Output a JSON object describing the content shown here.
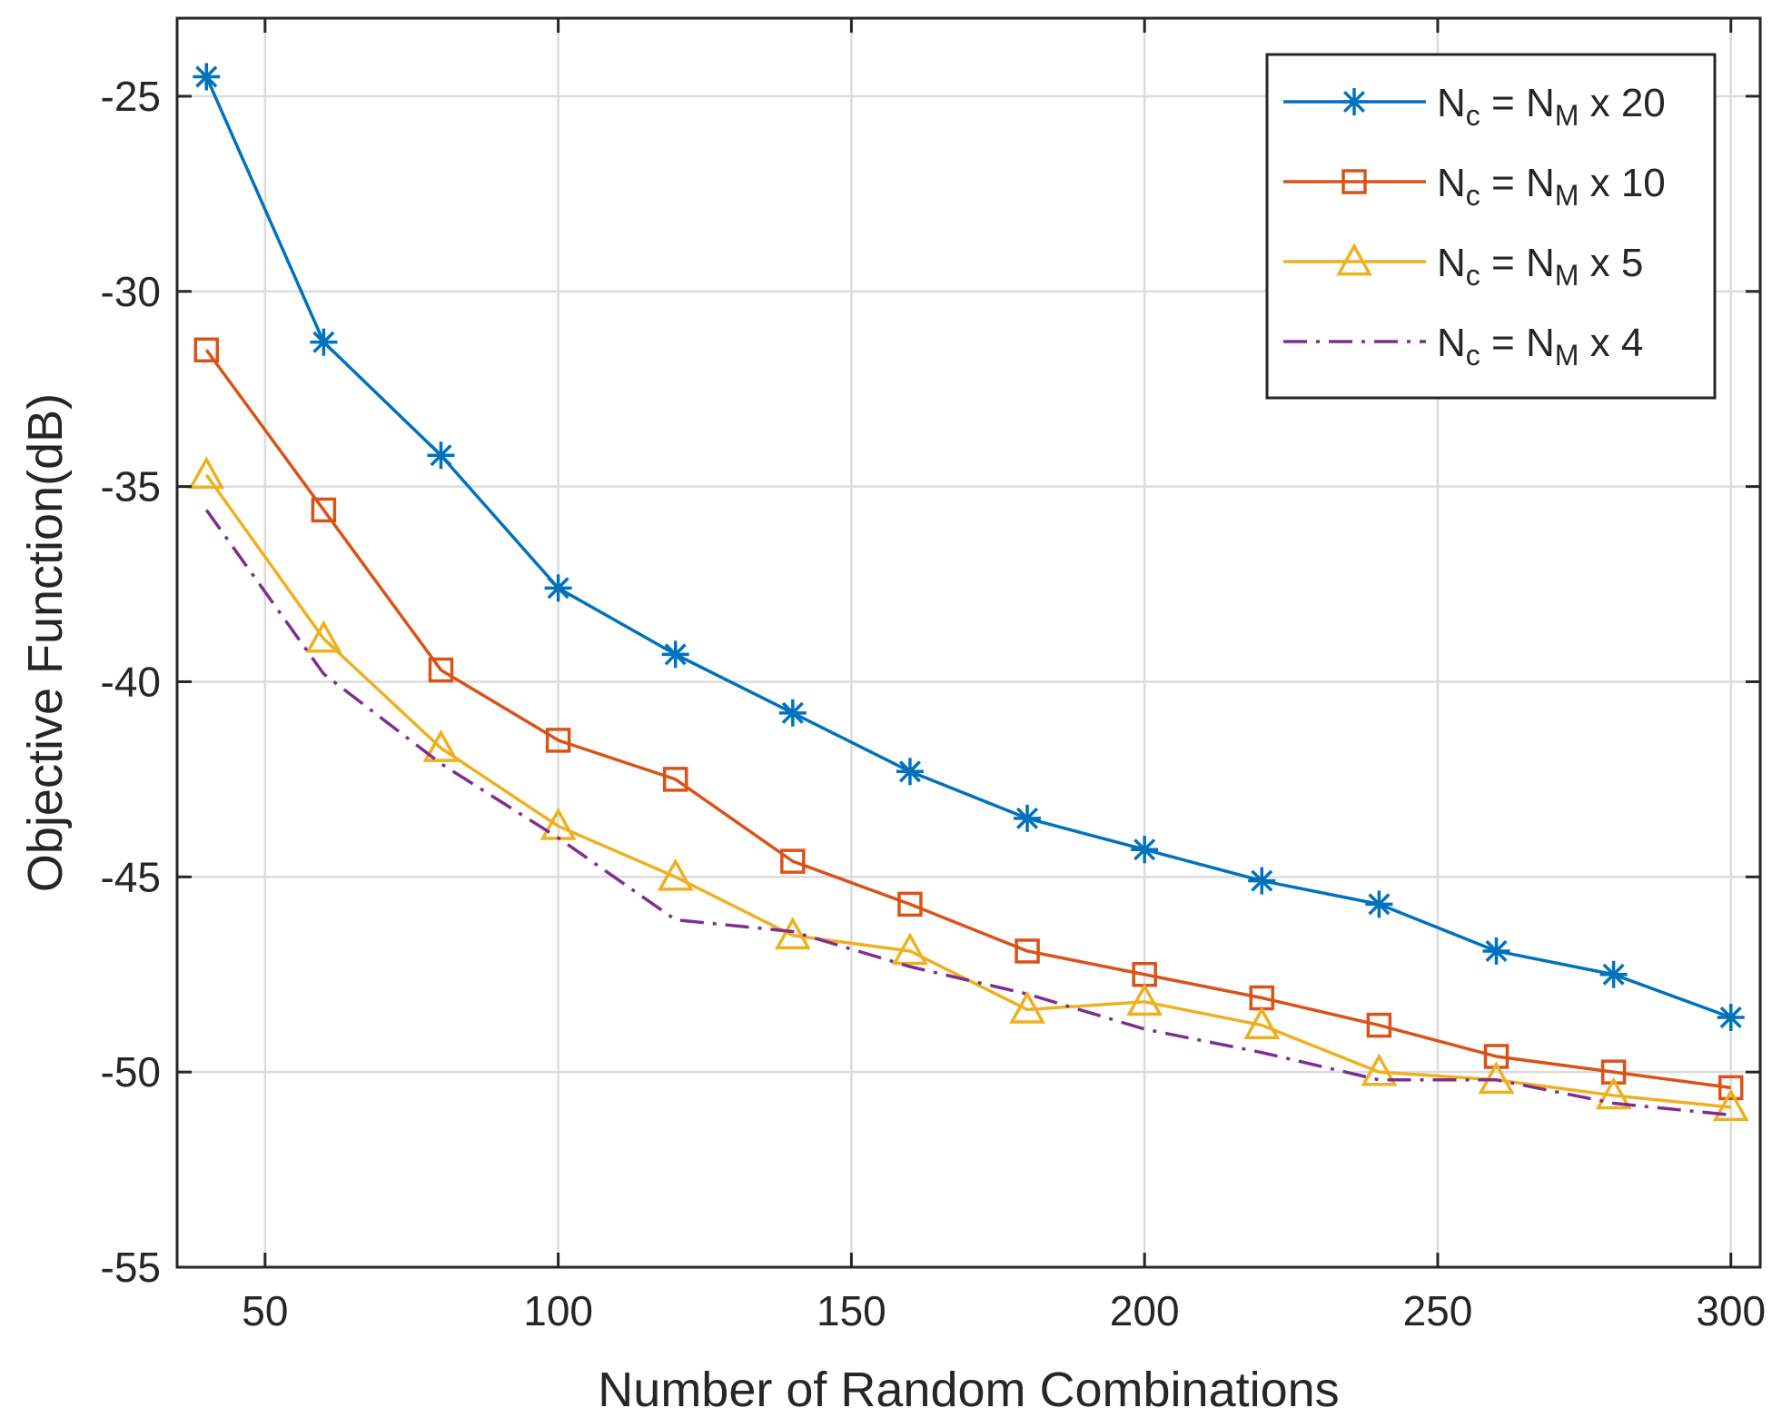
{
  "chart_data": {
    "type": "line",
    "title": "",
    "xlabel": "Number of Random Combinations",
    "ylabel": "Objective Function(dB)",
    "xlim": [
      35,
      305
    ],
    "ylim": [
      -55,
      -23
    ],
    "xticks": [
      50,
      100,
      150,
      200,
      250,
      300
    ],
    "yticks": [
      -25,
      -30,
      -35,
      -40,
      -45,
      -50,
      -55
    ],
    "xtick_labels": [
      "50",
      "100",
      "150",
      "200",
      "250",
      "300"
    ],
    "ytick_labels": [
      "-25",
      "-30",
      "-35",
      "-40",
      "-45",
      "-50",
      "-55"
    ],
    "grid": true,
    "legend_position": "top-right",
    "x": [
      40,
      60,
      80,
      100,
      120,
      140,
      160,
      180,
      200,
      220,
      240,
      260,
      280,
      300
    ],
    "series": [
      {
        "name": "N_c = N_M x 20",
        "legend": {
          "n1": "N",
          "sub1": "c",
          "eq": " = ",
          "n2": "N",
          "sub2": "M",
          "rest": " x 20"
        },
        "color": "#0072BD",
        "marker": "asterisk",
        "dash": "solid",
        "values": [
          -24.5,
          -31.3,
          -34.2,
          -37.6,
          -39.3,
          -40.8,
          -42.3,
          -43.5,
          -44.3,
          -45.1,
          -45.7,
          -46.9,
          -47.5,
          -48.6
        ]
      },
      {
        "name": "N_c = N_M x 10",
        "legend": {
          "n1": "N",
          "sub1": "c",
          "eq": " = ",
          "n2": "N",
          "sub2": "M",
          "rest": " x 10"
        },
        "color": "#D95319",
        "marker": "square",
        "dash": "solid",
        "values": [
          -31.5,
          -35.6,
          -39.7,
          -41.5,
          -42.5,
          -44.6,
          -45.7,
          -46.9,
          -47.5,
          -48.1,
          -48.8,
          -49.6,
          -50.0,
          -50.4
        ]
      },
      {
        "name": "N_c = N_M x 5",
        "legend": {
          "n1": "N",
          "sub1": "c",
          "eq": " = ",
          "n2": "N",
          "sub2": "M",
          "rest": " x 5"
        },
        "color": "#EDB120",
        "marker": "triangle",
        "dash": "solid",
        "values": [
          -34.7,
          -38.9,
          -41.7,
          -43.7,
          -45.0,
          -46.5,
          -46.9,
          -48.4,
          -48.2,
          -48.8,
          -50.0,
          -50.2,
          -50.6,
          -50.9
        ]
      },
      {
        "name": "N_c = N_M x 4",
        "legend": {
          "n1": "N",
          "sub1": "c",
          "eq": " = ",
          "n2": "N",
          "sub2": "M",
          "rest": " x 4"
        },
        "color": "#7E2F8E",
        "marker": "none",
        "dash": "dashdot",
        "values": [
          -35.6,
          -39.8,
          -42.1,
          -44.0,
          -46.1,
          -46.4,
          -47.3,
          -48.0,
          -48.9,
          -49.5,
          -50.2,
          -50.2,
          -50.8,
          -51.1
        ]
      }
    ]
  }
}
